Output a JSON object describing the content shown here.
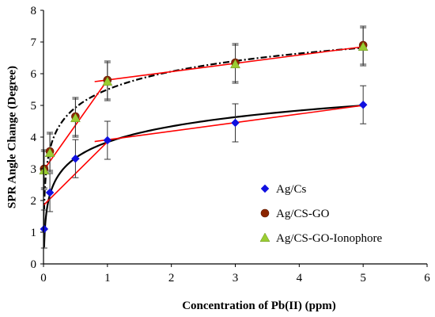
{
  "chart_data": {
    "type": "scatter",
    "xlabel": "Concentration of Pb(II) (ppm)",
    "ylabel": "SPR Angle Change (Degree)",
    "xlim": [
      0,
      6
    ],
    "ylim": [
      0,
      8
    ],
    "xticks": [
      0,
      1,
      2,
      3,
      4,
      5,
      6
    ],
    "yticks": [
      0,
      1,
      2,
      3,
      4,
      5,
      6,
      7,
      8
    ],
    "grid": false,
    "legend_position": "bottom-right",
    "series": [
      {
        "name": "Ag/Cs",
        "marker": "diamond",
        "color": "#1010e0",
        "points": [
          {
            "x": 0.01,
            "y": 1.1,
            "err": 0.6
          },
          {
            "x": 0.1,
            "y": 2.25,
            "err": 0.6
          },
          {
            "x": 0.5,
            "y": 3.32,
            "err": 0.6
          },
          {
            "x": 1.0,
            "y": 3.9,
            "err": 0.6
          },
          {
            "x": 3.0,
            "y": 4.45,
            "err": 0.6
          },
          {
            "x": 5.0,
            "y": 5.02,
            "err": 0.6
          }
        ]
      },
      {
        "name": "Ag/CS-GO",
        "marker": "circle",
        "color": "#8b2500",
        "points": [
          {
            "x": 0.01,
            "y": 3.0,
            "err": 0.6
          },
          {
            "x": 0.1,
            "y": 3.55,
            "err": 0.6
          },
          {
            "x": 0.5,
            "y": 4.65,
            "err": 0.6
          },
          {
            "x": 1.0,
            "y": 5.8,
            "err": 0.6
          },
          {
            "x": 3.0,
            "y": 6.35,
            "err": 0.6
          },
          {
            "x": 5.0,
            "y": 6.9,
            "err": 0.6
          }
        ]
      },
      {
        "name": "Ag/CS-GO-Ionophore",
        "marker": "triangle",
        "color": "#9acd32",
        "points": [
          {
            "x": 0.01,
            "y": 2.95,
            "err": 0.6
          },
          {
            "x": 0.1,
            "y": 3.5,
            "err": 0.6
          },
          {
            "x": 0.5,
            "y": 4.6,
            "err": 0.6
          },
          {
            "x": 1.0,
            "y": 5.75,
            "err": 0.6
          },
          {
            "x": 3.0,
            "y": 6.3,
            "err": 0.6
          },
          {
            "x": 5.0,
            "y": 6.85,
            "err": 0.6
          }
        ]
      }
    ],
    "trend_lines": [
      {
        "style": "solid",
        "color": "#000000",
        "kind": "log",
        "a": 3.84,
        "b": 0.72,
        "x_range": [
          0.01,
          5.0
        ]
      },
      {
        "style": "dash-dot",
        "color": "#000000",
        "kind": "log",
        "a": 5.5,
        "b": 0.82,
        "x_range": [
          0.01,
          5.0
        ]
      }
    ],
    "linear_fits": [
      {
        "color": "#ff0000",
        "points": [
          [
            0.0,
            1.85
          ],
          [
            1.0,
            3.85
          ]
        ]
      },
      {
        "color": "#ff0000",
        "points": [
          [
            0.8,
            3.86
          ],
          [
            5.0,
            5.0
          ]
        ]
      },
      {
        "color": "#ff0000",
        "points": [
          [
            0.0,
            2.95
          ],
          [
            1.0,
            5.8
          ]
        ]
      },
      {
        "color": "#ff0000",
        "points": [
          [
            0.8,
            5.75
          ],
          [
            5.0,
            6.85
          ]
        ]
      }
    ]
  }
}
